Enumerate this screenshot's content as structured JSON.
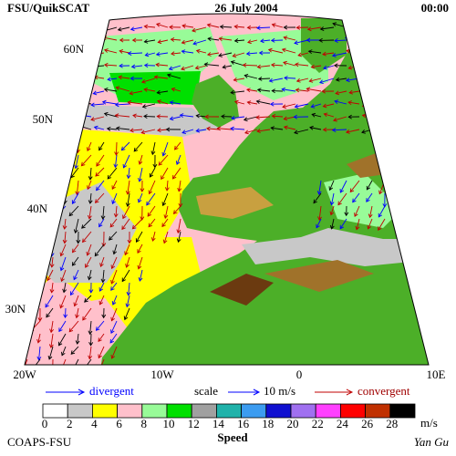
{
  "header": {
    "source": "FSU/QuikSCAT",
    "date": "26 July 2004",
    "time": "00:00"
  },
  "latitude_labels": [
    "60N",
    "50N",
    "40N",
    "30N"
  ],
  "longitude_labels": [
    "20W",
    "10W",
    "0",
    "10E"
  ],
  "legend": {
    "divergent": "divergent",
    "scale": "scale",
    "scale_value": "10 m/s",
    "convergent": "convergent"
  },
  "colorbar": {
    "labels": [
      "0",
      "2",
      "4",
      "6",
      "8",
      "10",
      "12",
      "14",
      "16",
      "18",
      "20",
      "22",
      "24",
      "26",
      "28"
    ],
    "colors": [
      "#ffffff",
      "#c8c8c8",
      "#ffff00",
      "#ffc0cb",
      "#98fb98",
      "#00e000",
      "#a0a0a0",
      "#20b2aa",
      "#3c9cf0",
      "#1010d0",
      "#a070f0",
      "#ff40ff",
      "#ff0000",
      "#c03000",
      "#000000"
    ],
    "unit": "m/s",
    "title": "Speed"
  },
  "footer": {
    "left": "COAPS-FSU",
    "right": "Yan Gu"
  }
}
